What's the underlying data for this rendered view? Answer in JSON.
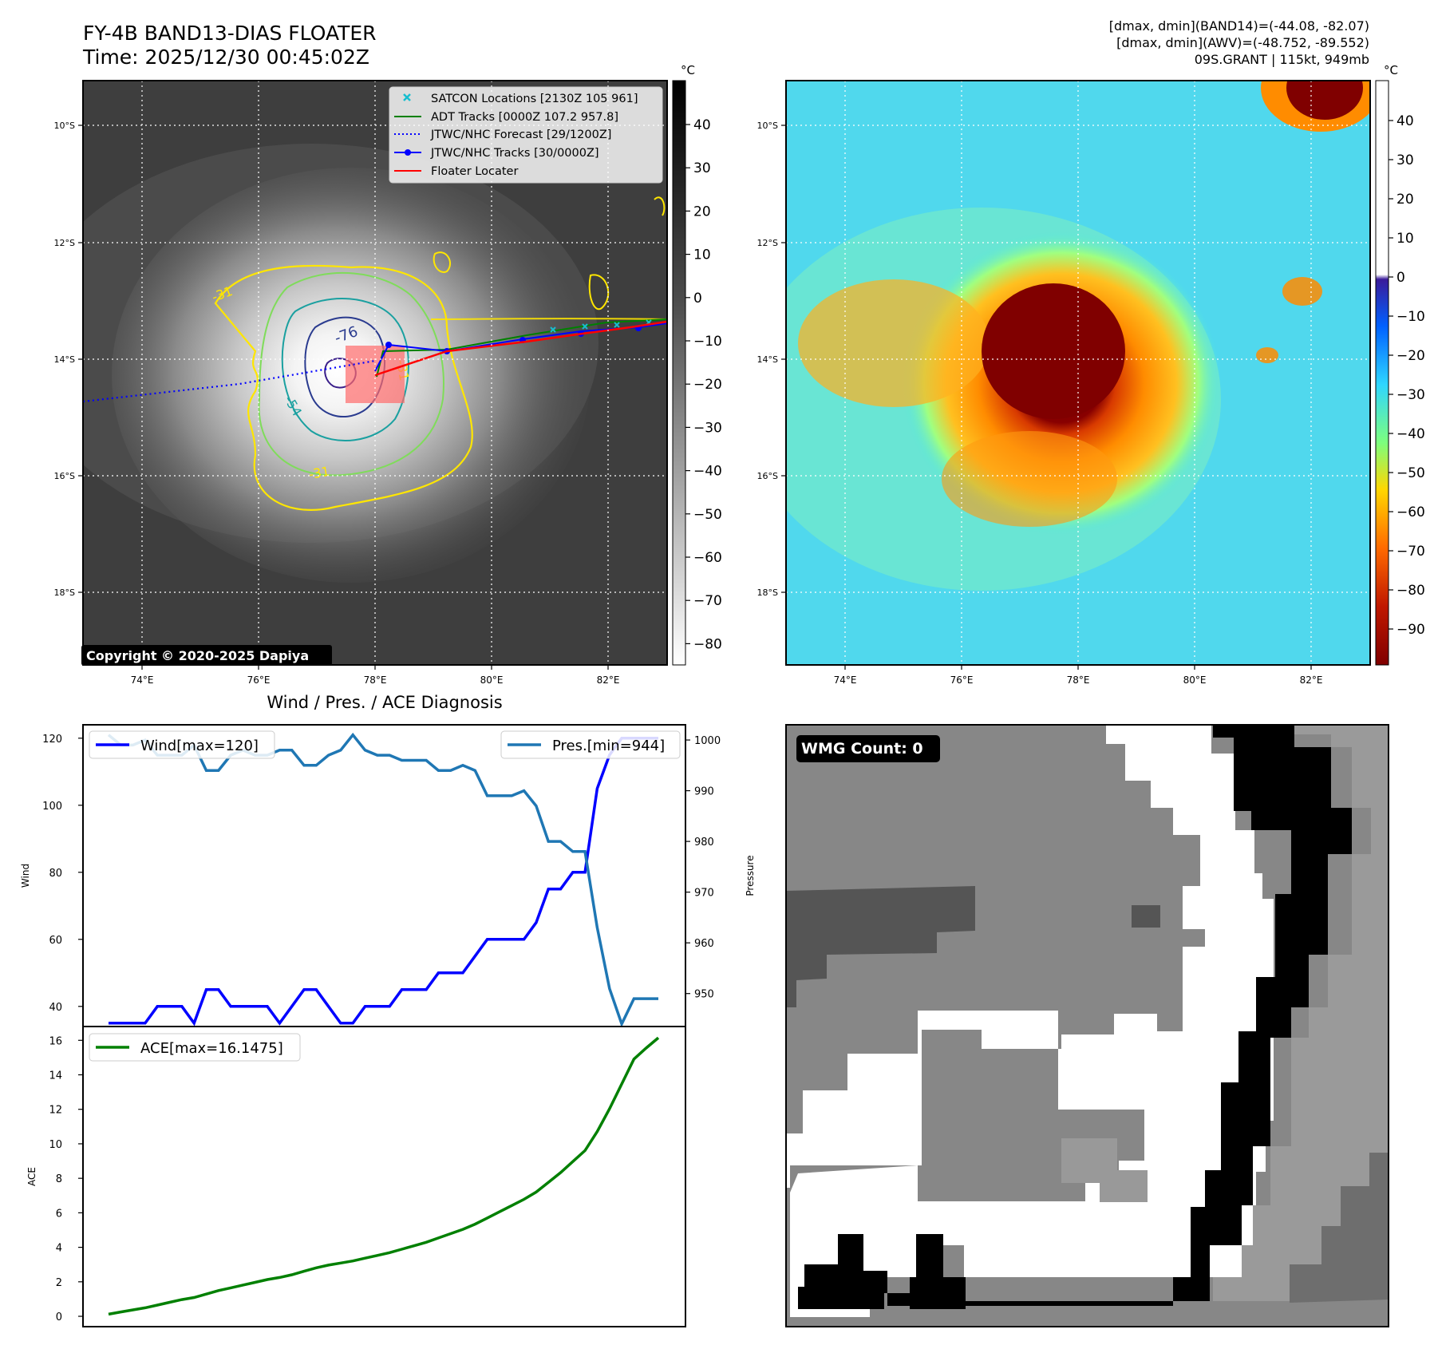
{
  "header": {
    "title_line1": "FY-4B BAND13-DIAS FLOATER",
    "title_line2": "Time: 2025/12/30 00:45:02Z",
    "info_line1": "[dmax, dmin](BAND14)=(-44.08, -82.07)",
    "info_line2": "[dmax, dmin](AWV)=(-48.752, -89.552)",
    "info_line3": "09S.GRANT | 115kt, 949mb"
  },
  "map_axes": {
    "lat_labels": [
      "10°S",
      "12°S",
      "14°S",
      "16°S",
      "18°S"
    ],
    "lon_labels": [
      "74°E",
      "76°E",
      "78°E",
      "80°E",
      "82°E"
    ]
  },
  "ir_panel": {
    "colorbar_unit": "°C",
    "colorbar_ticks": [
      "40",
      "30",
      "20",
      "10",
      "0",
      "−10",
      "−20",
      "−30",
      "−40",
      "−50",
      "−60",
      "−70",
      "−80"
    ],
    "copyright": "Copyright © 2020-2025 Dapiya",
    "contour_labels": [
      "-76",
      "-54",
      "-31",
      "-31",
      "-31"
    ],
    "legend": [
      {
        "label": "SATCON Locations [2130Z 105 961]",
        "color": "#17becf",
        "style": "x"
      },
      {
        "label": "ADT Tracks [0000Z 107.2 957.8]",
        "color": "#008000",
        "style": "solid"
      },
      {
        "label": "JTWC/NHC Forecast [29/1200Z]",
        "color": "#0000ff",
        "style": "dotted"
      },
      {
        "label": "JTWC/NHC Tracks [30/0000Z]",
        "color": "#0000ff",
        "style": "dot-line"
      },
      {
        "label": "Floater Locater",
        "color": "#ff0000",
        "style": "solid"
      }
    ]
  },
  "awv_panel": {
    "colorbar_unit": "°C",
    "colorbar_ticks": [
      "40",
      "30",
      "20",
      "10",
      "0",
      "−10",
      "−20",
      "−30",
      "−40",
      "−50",
      "−60",
      "−70",
      "−80",
      "−90"
    ]
  },
  "diag_panel": {
    "title": "Wind / Pres. / ACE Diagnosis",
    "wind_ylabel": "Wind",
    "pres_ylabel": "Pressure",
    "ace_ylabel": "ACE",
    "wind_legend": "Wind[max=120]",
    "pres_legend": "Pres.[min=944]",
    "ace_legend": "ACE[max=16.1475]",
    "wind_ticks": [
      "120",
      "100",
      "80",
      "60",
      "40"
    ],
    "pres_ticks": [
      "1000",
      "990",
      "980",
      "970",
      "960",
      "950"
    ],
    "ace_ticks": [
      "16",
      "14",
      "12",
      "10",
      "8",
      "6",
      "4",
      "2",
      "0"
    ]
  },
  "wmg_panel": {
    "label": "WMG Count: 0"
  },
  "chart_data": [
    {
      "type": "line",
      "title": "Wind / Pres. / ACE Diagnosis",
      "ylabel": "Wind",
      "ylim": [
        34,
        124
      ],
      "series": [
        {
          "name": "Wind[max=120]",
          "color": "#0000ff",
          "values": [
            35,
            35,
            35,
            35,
            40,
            40,
            40,
            35,
            45,
            45,
            40,
            40,
            40,
            40,
            35,
            40,
            45,
            45,
            40,
            35,
            35,
            40,
            40,
            40,
            45,
            45,
            45,
            50,
            50,
            50,
            55,
            60,
            60,
            60,
            60,
            65,
            75,
            75,
            80,
            80,
            105,
            115,
            120,
            120,
            120,
            120
          ]
        }
      ]
    },
    {
      "type": "line",
      "ylabel": "Pressure",
      "ylim": [
        943.5,
        1003
      ],
      "series": [
        {
          "name": "Pres.[min=944]",
          "color": "#1f77b4",
          "values": [
            1001,
            999,
            999,
            1000,
            997,
            997,
            997,
            999,
            994,
            994,
            997,
            998,
            997,
            997,
            998,
            998,
            995,
            995,
            997,
            998,
            1001,
            998,
            997,
            997,
            996,
            996,
            996,
            994,
            994,
            995,
            994,
            989,
            989,
            989,
            990,
            987,
            980,
            980,
            978,
            978,
            963,
            951,
            944,
            949,
            949,
            949
          ]
        }
      ]
    },
    {
      "type": "line",
      "ylabel": "ACE",
      "ylim": [
        -0.6,
        16.8
      ],
      "series": [
        {
          "name": "ACE[max=16.1475]",
          "color": "#008000",
          "values": [
            0.12,
            0.25,
            0.37,
            0.49,
            0.65,
            0.81,
            0.97,
            1.09,
            1.29,
            1.49,
            1.65,
            1.81,
            1.97,
            2.13,
            2.25,
            2.41,
            2.61,
            2.81,
            2.97,
            3.09,
            3.21,
            3.37,
            3.53,
            3.69,
            3.89,
            4.09,
            4.29,
            4.54,
            4.79,
            5.04,
            5.34,
            5.7,
            6.06,
            6.42,
            6.78,
            7.2,
            7.76,
            8.33,
            8.97,
            9.61,
            10.71,
            12.03,
            13.47,
            14.91,
            15.55,
            16.1475
          ]
        }
      ]
    }
  ]
}
